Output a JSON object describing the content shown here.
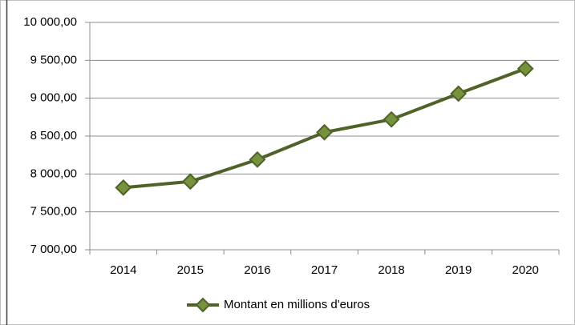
{
  "chart_data": {
    "type": "line",
    "categories": [
      "2014",
      "2015",
      "2016",
      "2017",
      "2018",
      "2019",
      "2020"
    ],
    "series": [
      {
        "name": "Montant en millions d'euros",
        "color": "#4f6228",
        "marker_color": "#76923c",
        "values": [
          7820,
          7900,
          8190,
          8550,
          8720,
          9060,
          9390
        ]
      }
    ],
    "ylim": [
      7000,
      10000
    ],
    "yticks": [
      {
        "value": 7000,
        "label": "7 000,00"
      },
      {
        "value": 7500,
        "label": "7 500,00"
      },
      {
        "value": 8000,
        "label": "8 000,00"
      },
      {
        "value": 8500,
        "label": "8 500,00"
      },
      {
        "value": 9000,
        "label": "9 000,00"
      },
      {
        "value": 9500,
        "label": "9 500,00"
      },
      {
        "value": 10000,
        "label": "10 000,00"
      }
    ],
    "grid": true,
    "legend": "bottom"
  }
}
